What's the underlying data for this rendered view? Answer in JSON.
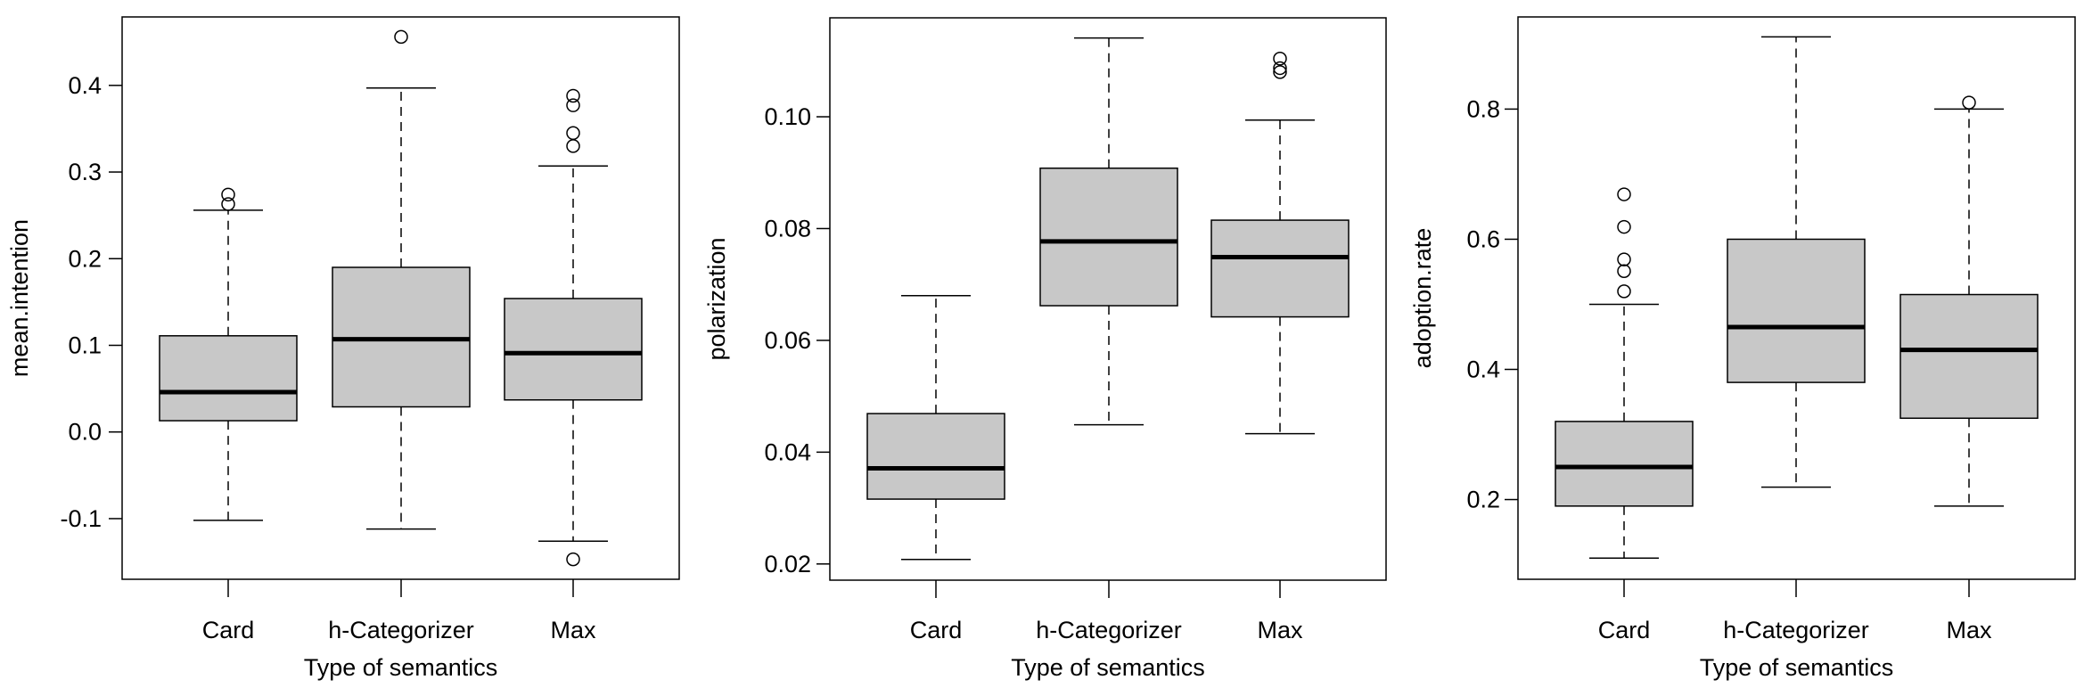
{
  "chart_data": [
    {
      "type": "boxplot",
      "title": "",
      "xlabel": "Type of semantics",
      "ylabel": "mean.intention",
      "ylim": [
        -0.17,
        0.479
      ],
      "yticks": [
        -0.1,
        0.0,
        0.1,
        0.2,
        0.3,
        0.4
      ],
      "ytick_labels": [
        "-0.1",
        "0.0",
        "0.1",
        "0.2",
        "0.3",
        "0.4"
      ],
      "categories": [
        "Card",
        "h-Categorizer",
        "Max"
      ],
      "boxes": [
        {
          "lower_whisker": -0.102,
          "q1": 0.013,
          "median": 0.046,
          "q3": 0.111,
          "upper_whisker": 0.256,
          "outliers": [
            0.274,
            0.263
          ]
        },
        {
          "lower_whisker": -0.112,
          "q1": 0.029,
          "median": 0.107,
          "q3": 0.19,
          "upper_whisker": 0.397,
          "outliers": [
            0.456
          ]
        },
        {
          "lower_whisker": -0.126,
          "q1": 0.037,
          "median": 0.091,
          "q3": 0.154,
          "upper_whisker": 0.307,
          "outliers": [
            0.388,
            0.377,
            0.345,
            0.33,
            -0.147
          ]
        }
      ],
      "grid": false,
      "box_color": "#c8c8c8"
    },
    {
      "type": "boxplot",
      "title": "",
      "xlabel": "Type of semantics",
      "ylabel": "polarization",
      "ylim": [
        0.0171,
        0.1177
      ],
      "yticks": [
        0.02,
        0.04,
        0.06,
        0.08,
        0.1
      ],
      "ytick_labels": [
        "0.02",
        "0.04",
        "0.06",
        "0.08",
        "0.10"
      ],
      "categories": [
        "Card",
        "h-Categorizer",
        "Max"
      ],
      "boxes": [
        {
          "lower_whisker": 0.0208,
          "q1": 0.0316,
          "median": 0.0371,
          "q3": 0.0469,
          "upper_whisker": 0.068,
          "outliers": []
        },
        {
          "lower_whisker": 0.0449,
          "q1": 0.0662,
          "median": 0.0777,
          "q3": 0.0908,
          "upper_whisker": 0.1141,
          "outliers": []
        },
        {
          "lower_whisker": 0.0433,
          "q1": 0.0642,
          "median": 0.0749,
          "q3": 0.0815,
          "upper_whisker": 0.0994,
          "outliers": [
            0.1104,
            0.1087,
            0.108
          ]
        }
      ],
      "grid": false,
      "box_color": "#c8c8c8"
    },
    {
      "type": "boxplot",
      "title": "",
      "xlabel": "Type of semantics",
      "ylabel": "adoption.rate",
      "ylim": [
        0.0775,
        0.9416
      ],
      "yticks": [
        0.2,
        0.4,
        0.6,
        0.8
      ],
      "ytick_labels": [
        "0.2",
        "0.4",
        "0.6",
        "0.8"
      ],
      "categories": [
        "Card",
        "h-Categorizer",
        "Max"
      ],
      "boxes": [
        {
          "lower_whisker": 0.11,
          "q1": 0.19,
          "median": 0.25,
          "q3": 0.32,
          "upper_whisker": 0.5,
          "outliers": [
            0.669,
            0.619,
            0.569,
            0.551,
            0.52
          ]
        },
        {
          "lower_whisker": 0.219,
          "q1": 0.38,
          "median": 0.465,
          "q3": 0.6,
          "upper_whisker": 0.911,
          "outliers": []
        },
        {
          "lower_whisker": 0.19,
          "q1": 0.325,
          "median": 0.43,
          "q3": 0.515,
          "upper_whisker": 0.8,
          "outliers": [
            0.81
          ]
        }
      ],
      "grid": false,
      "box_color": "#c8c8c8"
    }
  ]
}
